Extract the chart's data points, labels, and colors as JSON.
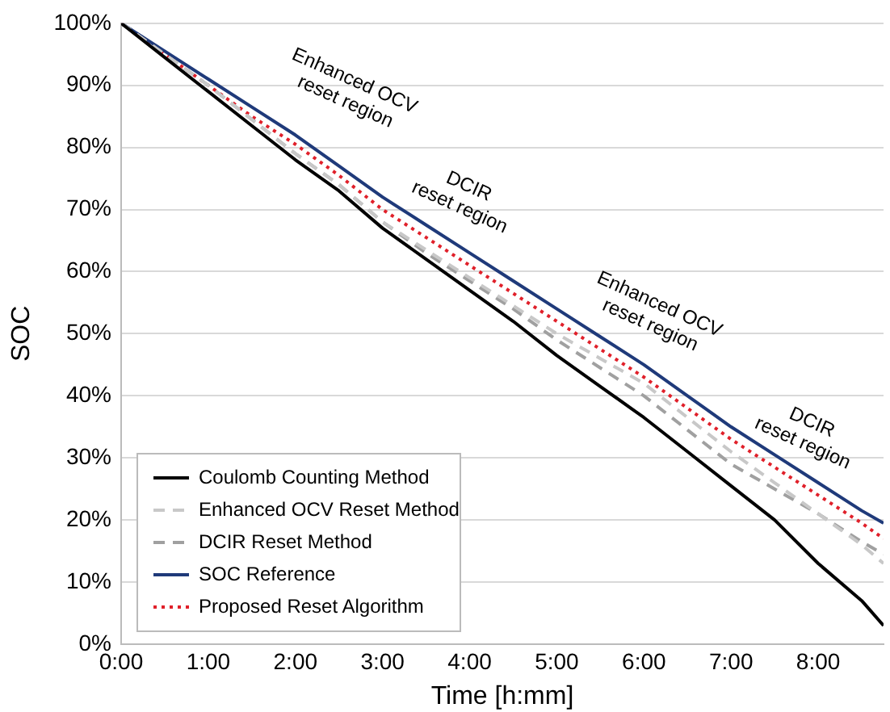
{
  "chart_data": {
    "type": "line",
    "xlabel": "Time [h:mm]",
    "ylabel": "SOC",
    "x": [
      0,
      0.5,
      1,
      1.5,
      2,
      2.5,
      3,
      3.5,
      4,
      4.5,
      5,
      5.5,
      6,
      6.5,
      7,
      7.5,
      8,
      8.5,
      8.75
    ],
    "series": [
      {
        "name": "Coulomb Counting Method",
        "color": "#000000",
        "line_style": "solid",
        "values": [
          100,
          94.5,
          89,
          83.5,
          78,
          73,
          67,
          62,
          57,
          52,
          46.5,
          41.5,
          36.5,
          31,
          25.5,
          20,
          13,
          7,
          3
        ]
      },
      {
        "name": "Enhanced OCV Reset Method",
        "color": "#c8c8c8",
        "line_style": "dashed",
        "values": [
          100,
          95,
          90,
          84.5,
          79,
          74,
          68,
          63.5,
          59,
          54.5,
          50,
          46,
          42,
          36.5,
          31,
          26,
          21,
          16,
          13
        ]
      },
      {
        "name": "DCIR Reset Method",
        "color": "#a0a0a0",
        "line_style": "dashed",
        "values": [
          100,
          95,
          90,
          84.5,
          79,
          74,
          68,
          63,
          58.5,
          54,
          49,
          44.5,
          40,
          34.5,
          29,
          25,
          21,
          16.5,
          14.5
        ]
      },
      {
        "name": "SOC Reference",
        "color": "#1f3a7a",
        "line_style": "solid",
        "values": [
          100,
          95.5,
          91,
          86.5,
          82,
          77,
          72,
          67.5,
          63,
          58.5,
          54,
          49.5,
          45,
          40,
          35,
          30.5,
          26,
          21.5,
          19.5
        ]
      },
      {
        "name": "Proposed Reset Algorithm",
        "color": "#e0202a",
        "line_style": "dotted",
        "values": [
          100,
          95,
          90,
          85,
          80.5,
          75.5,
          70,
          65.5,
          61,
          56.5,
          52,
          47.5,
          43,
          38,
          33,
          28.5,
          24,
          19.5,
          17
        ]
      }
    ],
    "xlim": [
      0,
      8.75
    ],
    "xticks": [
      {
        "value": 0,
        "label": "0:00"
      },
      {
        "value": 1,
        "label": "1:00"
      },
      {
        "value": 2,
        "label": "2:00"
      },
      {
        "value": 3,
        "label": "3:00"
      },
      {
        "value": 4,
        "label": "4:00"
      },
      {
        "value": 5,
        "label": "5:00"
      },
      {
        "value": 6,
        "label": "6:00"
      },
      {
        "value": 7,
        "label": "7:00"
      },
      {
        "value": 8,
        "label": "8:00"
      }
    ],
    "ylim": [
      0,
      100
    ],
    "yticks": [
      {
        "value": 0,
        "label": "0%"
      },
      {
        "value": 10,
        "label": "10%"
      },
      {
        "value": 20,
        "label": "20%"
      },
      {
        "value": 30,
        "label": "30%"
      },
      {
        "value": 40,
        "label": "40%"
      },
      {
        "value": 50,
        "label": "50%"
      },
      {
        "value": 60,
        "label": "60%"
      },
      {
        "value": 70,
        "label": "70%"
      },
      {
        "value": 80,
        "label": "80%"
      },
      {
        "value": 90,
        "label": "90%"
      },
      {
        "value": 100,
        "label": "100%"
      }
    ],
    "grid": "y",
    "legend": "bottom left",
    "marker": "none",
    "annotations": [
      "Enhanced OCV\nreset region",
      "DCIR\nreset region",
      "Enhanced OCV\nreset region",
      "DCIR\nreset region"
    ]
  }
}
